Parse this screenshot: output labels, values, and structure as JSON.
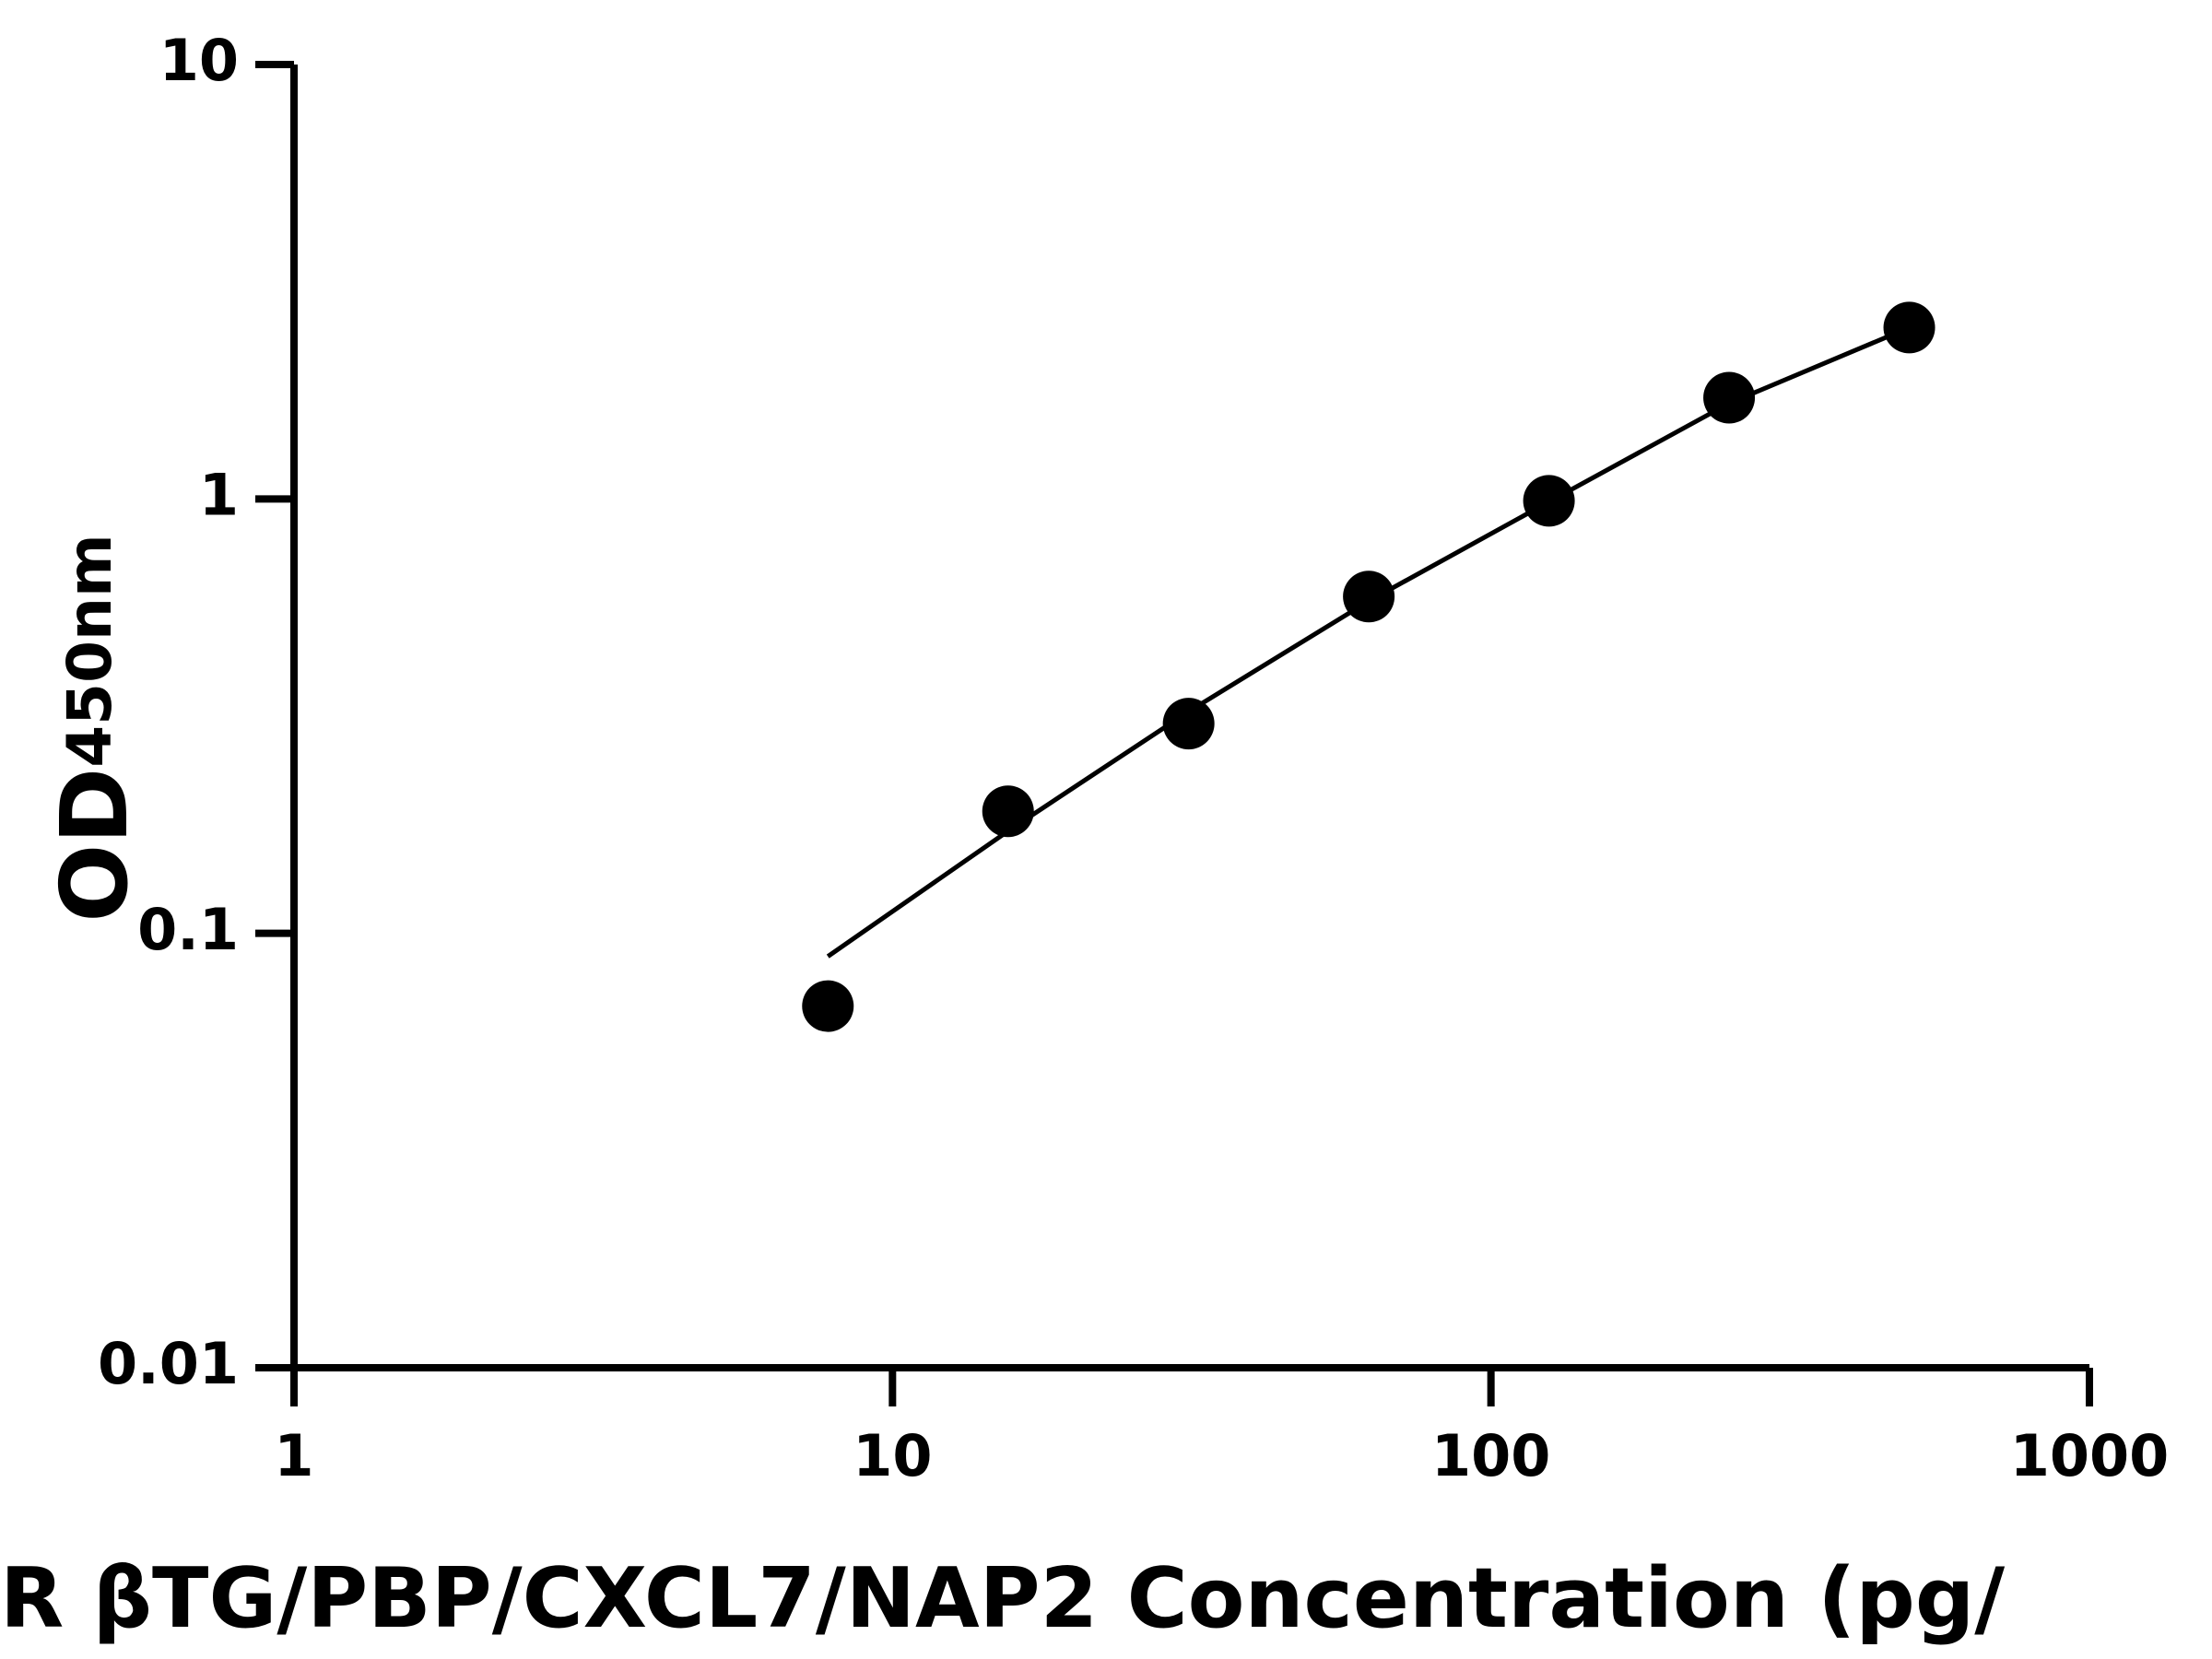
{
  "chart_data": {
    "type": "scatter",
    "x_label": "R βTG/PBP/CXCL7/NAP2 Concentration (pg/",
    "y_label": "OD",
    "y_label_sub": "450nm",
    "x": [
      7.8,
      15.6,
      31.25,
      62.5,
      125,
      250,
      500
    ],
    "values": [
      0.068,
      0.191,
      0.304,
      0.596,
      0.99,
      1.71,
      2.48
    ],
    "color": "#000000",
    "fit": {
      "x": [
        7.8,
        15.6,
        31.25,
        62.5,
        125,
        250,
        500
      ],
      "values": [
        0.0885,
        0.172,
        0.324,
        0.582,
        0.985,
        1.66,
        2.48
      ]
    },
    "xlog": true,
    "ylog": true,
    "xlim": [
      1,
      1000
    ],
    "ylim": [
      0.01,
      10
    ],
    "xticks": [
      1,
      10,
      100,
      1000
    ],
    "yticks": [
      0.01,
      0.1,
      1,
      10
    ],
    "grid": false
  }
}
